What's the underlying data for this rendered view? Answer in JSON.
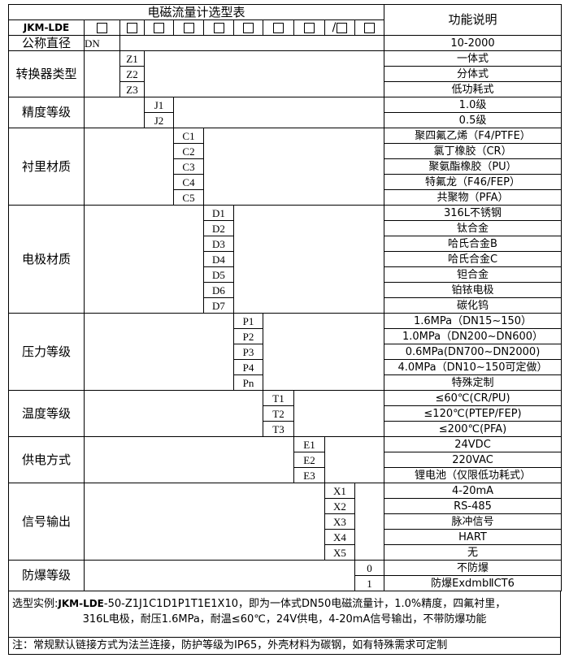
{
  "header": {
    "title": "电磁流量计选型表",
    "desc_header": "功能说明",
    "model_prefix": "JKM-LDE",
    "slash": "/"
  },
  "groups": [
    {
      "label": "公称直径",
      "codes": [
        "DN"
      ],
      "descs": [
        "10-2000"
      ]
    },
    {
      "label": "转换器类型",
      "codes": [
        "Z1",
        "Z2",
        "Z3"
      ],
      "descs": [
        "一体式",
        "分体式",
        "低功耗式"
      ]
    },
    {
      "label": "精度等级",
      "codes": [
        "J1",
        "J2"
      ],
      "descs": [
        "1.0级",
        "0.5级"
      ]
    },
    {
      "label": "衬里材质",
      "codes": [
        "C1",
        "C2",
        "C3",
        "C4",
        "C5"
      ],
      "descs": [
        "聚四氟乙烯（F4/PTFE）",
        "氯丁橡胶（CR）",
        "聚氨酯橡胶（PU）",
        "特氟龙（F46/FEP）",
        "共聚物（PFA）"
      ]
    },
    {
      "label": "电极材质",
      "codes": [
        "D1",
        "D2",
        "D3",
        "D4",
        "D5",
        "D6",
        "D7"
      ],
      "descs": [
        "316L不锈钢",
        "钛合金",
        "哈氏合金B",
        "哈氏合金C",
        "钽合金",
        "铂铱电极",
        "碳化钨"
      ]
    },
    {
      "label": "压力等级",
      "codes": [
        "P1",
        "P2",
        "P3",
        "P4",
        "Pn"
      ],
      "descs": [
        "1.6MPa（DN15~150）",
        "1.0MPa（DN200~DN600）",
        "0.6MPa(DN700~DN2000)",
        "4.0MPa（DN10~150可定做）",
        "特殊定制"
      ]
    },
    {
      "label": "温度等级",
      "codes": [
        "T1",
        "T2",
        "T3"
      ],
      "descs": [
        "≤60℃(CR/PU)",
        "≤120℃(PTEP/FEP)",
        "≤200℃(PFA)"
      ]
    },
    {
      "label": "供电方式",
      "codes": [
        "E1",
        "E2",
        "E3"
      ],
      "descs": [
        "24VDC",
        "220VAC",
        "锂电池（仅限低功耗式）"
      ]
    },
    {
      "label": "信号输出",
      "codes": [
        "X1",
        "X2",
        "X3",
        "X4",
        "X5"
      ],
      "descs": [
        "4-20mA",
        "RS-485",
        "脉冲信号",
        "HART",
        "无"
      ]
    },
    {
      "label": "防爆等级",
      "codes": [
        "0",
        "1"
      ],
      "descs": [
        "不防爆",
        "防爆ExdmbⅡCT6"
      ]
    }
  ],
  "footer": {
    "example_label": "选型实例:",
    "example_model": "JKM-LDE",
    "example_line1_rest": "-50-Z1J1C1D1P1T1E1X10，即为一体式DN50电磁流量计，1.0%精度，四氟衬里，",
    "example_line2": "316L电极，耐压1.6MPa，耐温≤60℃，24V供电，4-20mA信号输出，不带防爆功能",
    "note": "注：常规默认链接方式为法兰连接，防护等级为IP65，外壳材料为碳钢，如有特殊需求可定制"
  }
}
